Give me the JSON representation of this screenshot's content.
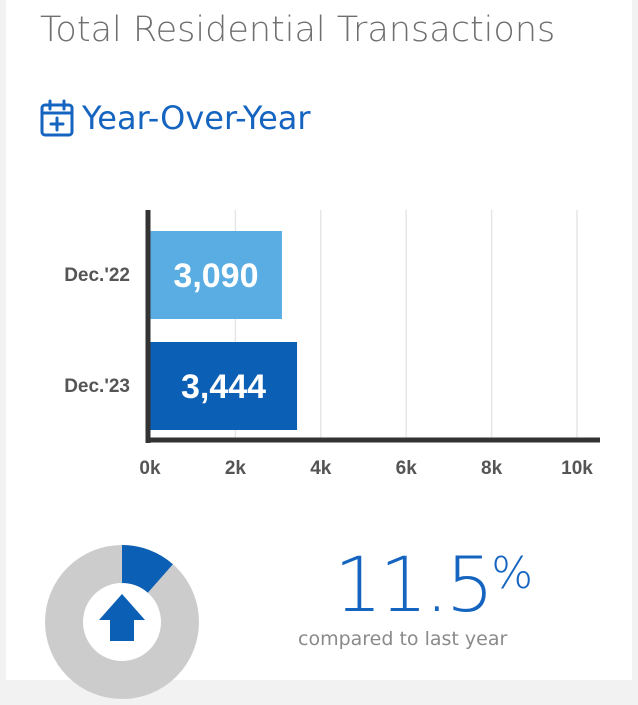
{
  "header": {
    "title": "Total Residential Transactions",
    "subtitle": "Year-Over-Year",
    "icon": "calendar-plus-icon"
  },
  "chart_data": {
    "type": "bar",
    "orientation": "horizontal",
    "categories": [
      "Dec.'22",
      "Dec.'23"
    ],
    "values": [
      3090,
      3444
    ],
    "value_labels": [
      "3,090",
      "3,444"
    ],
    "bar_colors": [
      "#5aade3",
      "#0b5fb4"
    ],
    "xlim": [
      0,
      10000
    ],
    "xticks": [
      0,
      2000,
      4000,
      6000,
      8000,
      10000
    ],
    "xtick_labels": [
      "0k",
      "2k",
      "4k",
      "6k",
      "8k",
      "10k"
    ],
    "grid": true,
    "legend": "none"
  },
  "summary": {
    "percent_value": "11.5",
    "percent_sign": "%",
    "percent_fraction": 0.115,
    "caption": "compared to last year",
    "direction_icon": "arrow-up-icon",
    "fill_color": "#0b5fb4",
    "track_color": "#cccccc"
  }
}
